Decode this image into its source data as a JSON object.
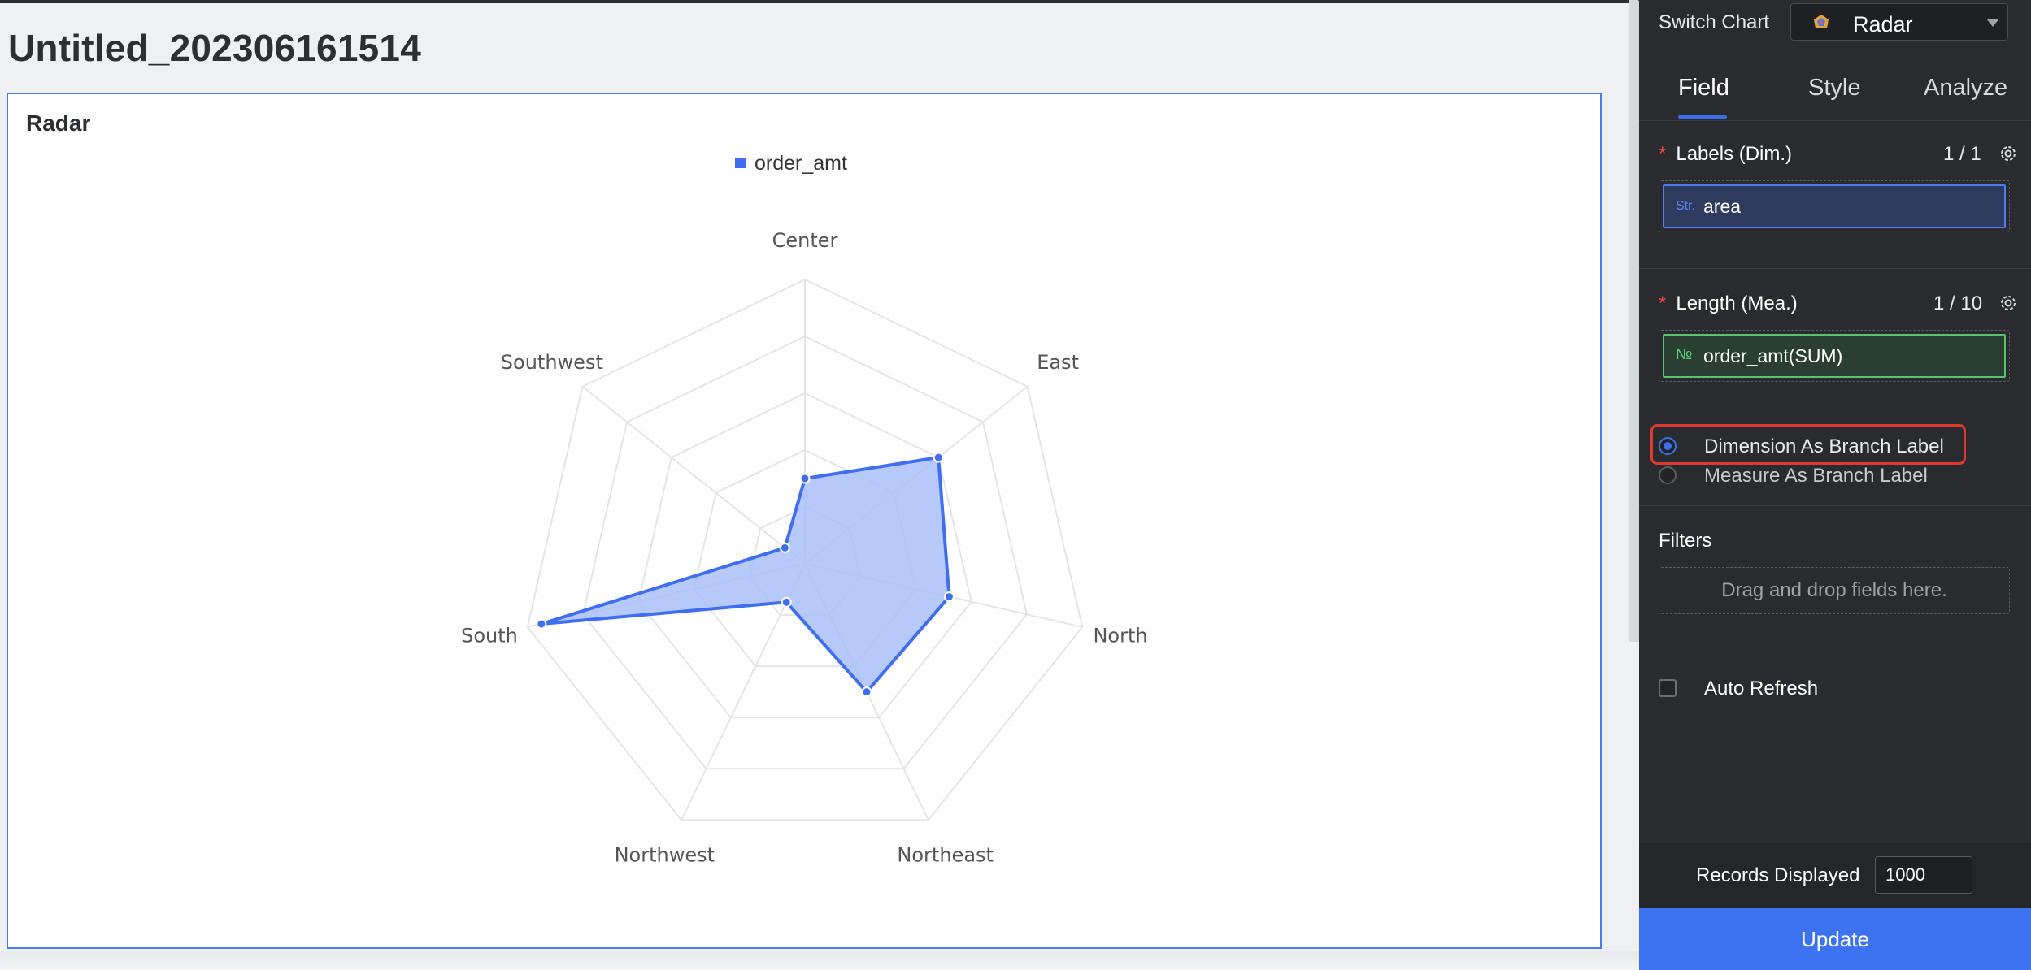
{
  "page": {
    "title": "Untitled_202306161514"
  },
  "chart_card": {
    "title": "Radar"
  },
  "chart_data": {
    "type": "radar",
    "title": "Radar",
    "axes": [
      "Center",
      "East",
      "North",
      "Northeast",
      "Northwest",
      "South",
      "Southwest"
    ],
    "axis_max": 100,
    "grid_levels": 5,
    "series": [
      {
        "name": "order_amt",
        "values": [
          30,
          60,
          52,
          50,
          15,
          95,
          9
        ]
      }
    ],
    "legend_position": "top-center",
    "colors": {
      "line": "#3f6ff0",
      "fill": "#a9bff8",
      "grid": "#e3e4e6",
      "axis_label": "#555555"
    }
  },
  "panel": {
    "switch_chart_label": "Switch Chart",
    "chart_type": "Radar",
    "chart_type_icon": "radar-chart-icon",
    "tabs": [
      {
        "label": "Field"
      },
      {
        "label": "Style"
      },
      {
        "label": "Analyze"
      }
    ],
    "labels_section": {
      "title": "Labels (Dim.)",
      "count": "1 / 1",
      "field_tag": "Str.",
      "field": "area"
    },
    "length_section": {
      "title": "Length (Mea.)",
      "count": "1 / 10",
      "field_tag": "№",
      "field": "order_amt(SUM)"
    },
    "branch_label": {
      "options": [
        "Dimension As Branch Label",
        "Measure As Branch Label"
      ],
      "selected": "Dimension As Branch Label"
    },
    "filters": {
      "title": "Filters",
      "placeholder": "Drag and drop fields here."
    },
    "auto_refresh": {
      "label": "Auto Refresh",
      "checked": false
    },
    "records": {
      "label": "Records Displayed",
      "value": "1000"
    },
    "update_button": "Update",
    "accent": "#3d6fe8",
    "highlight": "#e03a2f"
  }
}
